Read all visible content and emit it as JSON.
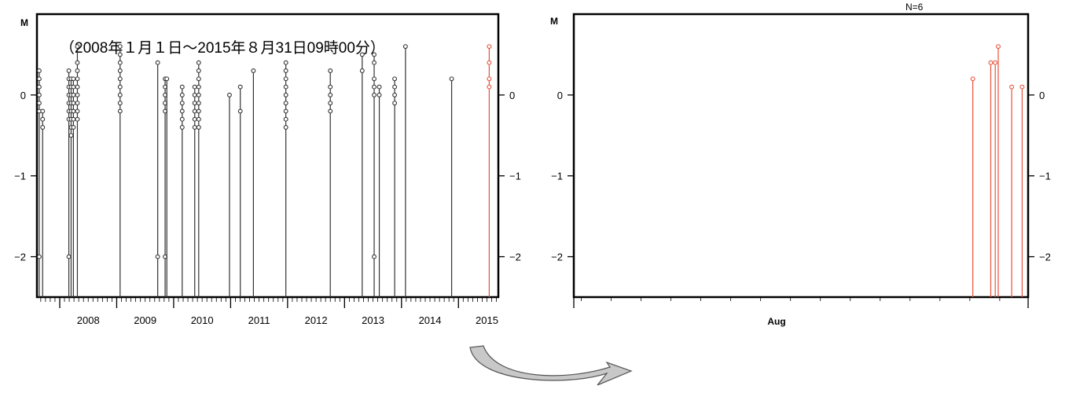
{
  "colors": {
    "old_series": "#333333",
    "new_series": "#e8513a",
    "axis": "#000000",
    "arrow_fill": "#c8c8c8"
  },
  "chart_data": [
    {
      "type": "stem",
      "ylabel": "M",
      "annotation": "（2008年１月１日～2015年８月31日09時00分）",
      "ylim": [
        -2.5,
        1.0
      ],
      "yticks": [
        0,
        -1,
        -2
      ],
      "ytick_labels": [
        "0",
        "−1",
        "−2"
      ],
      "x_unit": "year",
      "xlim": [
        2007.6,
        2015.7
      ],
      "x_tick_labels": [
        "2008",
        "2009",
        "2010",
        "2011",
        "2012",
        "2013",
        "2014",
        "2015"
      ],
      "grid": false,
      "series": [
        {
          "color_key": "old_series",
          "points": [
            {
              "x": 2007.64,
              "m": [
                0.3,
                0.2,
                0.1,
                0.0,
                -0.1,
                -0.2,
                -2.0
              ]
            },
            {
              "x": 2007.7,
              "m": [
                -0.2,
                -0.3,
                -0.4
              ]
            },
            {
              "x": 2008.16,
              "m": [
                0.3,
                0.2,
                0.1,
                0.0,
                -0.1,
                -0.2,
                -0.3,
                -2.0
              ]
            },
            {
              "x": 2008.2,
              "m": [
                0.2,
                0.1,
                0.0,
                -0.1,
                -0.2,
                -0.3,
                -0.4,
                -0.5
              ]
            },
            {
              "x": 2008.24,
              "m": [
                0.2,
                0.1,
                0.0,
                -0.1,
                -0.2,
                -0.3,
                -0.4
              ]
            },
            {
              "x": 2008.31,
              "m": [
                0.6,
                0.4,
                0.3,
                0.2,
                0.1,
                0.0,
                -0.1,
                -0.2,
                -0.3
              ]
            },
            {
              "x": 2009.06,
              "m": [
                0.6,
                0.5,
                0.4,
                0.3,
                0.2,
                0.1,
                0.0,
                -0.1,
                -0.2
              ]
            },
            {
              "x": 2009.72,
              "m": [
                0.4,
                -2.0
              ]
            },
            {
              "x": 2009.85,
              "m": [
                0.2,
                0.1,
                0.0,
                -0.1,
                -0.2,
                -2.0
              ]
            },
            {
              "x": 2009.88,
              "m": [
                0.2
              ]
            },
            {
              "x": 2010.15,
              "m": [
                0.1,
                0.0,
                -0.1,
                -0.2,
                -0.3,
                -0.4
              ]
            },
            {
              "x": 2010.37,
              "m": [
                0.1,
                0.0,
                -0.1,
                -0.2,
                -0.3,
                -0.4
              ]
            },
            {
              "x": 2010.44,
              "m": [
                0.4,
                0.3,
                0.2,
                0.1,
                0.0,
                -0.1,
                -0.2,
                -0.3,
                -0.4
              ]
            },
            {
              "x": 2010.98,
              "m": [
                0.0
              ]
            },
            {
              "x": 2011.17,
              "m": [
                0.1,
                -0.2
              ]
            },
            {
              "x": 2011.4,
              "m": [
                0.3
              ]
            },
            {
              "x": 2011.97,
              "m": [
                0.4,
                0.3,
                0.2,
                0.1,
                0.0,
                -0.1,
                -0.2,
                -0.3,
                -0.4
              ]
            },
            {
              "x": 2012.75,
              "m": [
                0.3,
                0.1,
                0.0,
                -0.1,
                -0.2
              ]
            },
            {
              "x": 2013.31,
              "m": [
                0.5,
                0.3
              ]
            },
            {
              "x": 2013.52,
              "m": [
                0.5,
                0.4,
                0.2,
                0.1,
                0.0,
                -2.0
              ]
            },
            {
              "x": 2013.61,
              "m": [
                0.1,
                0.0
              ]
            },
            {
              "x": 2013.88,
              "m": [
                0.2,
                0.1,
                0.0,
                -0.1
              ]
            },
            {
              "x": 2014.07,
              "m": [
                0.6
              ]
            },
            {
              "x": 2014.88,
              "m": [
                0.2
              ]
            }
          ]
        },
        {
          "color_key": "new_series",
          "points": [
            {
              "x": 2015.54,
              "m": [
                0.6,
                0.4,
                0.2,
                0.1
              ]
            }
          ]
        }
      ]
    },
    {
      "type": "stem",
      "ylabel": "M",
      "count_label": "N=6",
      "x_tick_label": "Aug",
      "x_unit": "day of August 2015",
      "xlim": [
        1.0,
        31.4
      ],
      "ylim": [
        -2.5,
        1.0
      ],
      "yticks": [
        0,
        -1,
        -2
      ],
      "ytick_labels": [
        "0",
        "−1",
        "−2"
      ],
      "grid": false,
      "series": [
        {
          "color_key": "new_series",
          "points": [
            {
              "x": 27.7,
              "m": [
                0.2
              ]
            },
            {
              "x": 28.9,
              "m": [
                0.4
              ]
            },
            {
              "x": 29.2,
              "m": [
                0.4
              ]
            },
            {
              "x": 29.4,
              "m": [
                0.6
              ]
            },
            {
              "x": 30.3,
              "m": [
                0.1
              ]
            },
            {
              "x": 31.0,
              "m": [
                0.1
              ]
            }
          ]
        }
      ]
    }
  ]
}
